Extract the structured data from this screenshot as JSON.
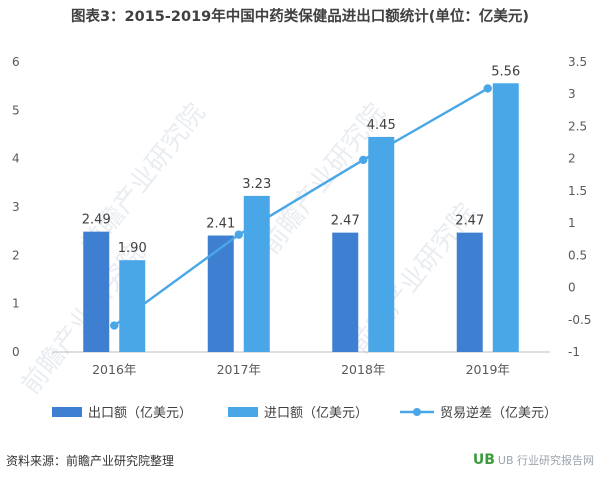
{
  "title": "图表3：2015-2019年中国中药类保健品进出口额统计(单位：亿美元)",
  "source": "资料来源：前瞻产业研究院整理",
  "watermark": {
    "diagonal": "前瞻产业研究院",
    "corner": "UB 行业研究报告网"
  },
  "colors": {
    "export": "#3e7fd1",
    "import": "#49a7e7",
    "trade": "#49a7e7",
    "axis_text": "#595959",
    "grid": "#d9d9d9"
  },
  "chart_data": {
    "type": "bar",
    "categories": [
      "2016年",
      "2017年",
      "2018年",
      "2019年"
    ],
    "series": [
      {
        "name": "出口额（亿美元）",
        "axis": "left",
        "type": "bar",
        "values": [
          2.49,
          2.41,
          2.47,
          2.47
        ]
      },
      {
        "name": "进口额（亿美元）",
        "axis": "left",
        "type": "bar",
        "values": [
          1.9,
          3.23,
          4.45,
          5.56
        ]
      },
      {
        "name": "贸易逆差（亿美元）",
        "axis": "right",
        "type": "line",
        "values": [
          -0.59,
          0.82,
          1.98,
          3.09
        ]
      }
    ],
    "y_left": {
      "min": 0,
      "max": 6,
      "ticks": [
        "0",
        "1",
        "2",
        "3",
        "4",
        "5",
        "6"
      ]
    },
    "y_right": {
      "min": -1,
      "max": 3.5,
      "ticks": [
        "-1",
        "-0.5",
        "0",
        "0.5",
        "1",
        "1.5",
        "2",
        "2.5",
        "3",
        "3.5"
      ]
    },
    "data_labels": {
      "export": [
        "2.49",
        "2.41",
        "2.47",
        "2.47"
      ],
      "import": [
        "1.90",
        "3.23",
        "4.45",
        "5.56"
      ]
    },
    "legend_position": "bottom",
    "grid": false
  }
}
